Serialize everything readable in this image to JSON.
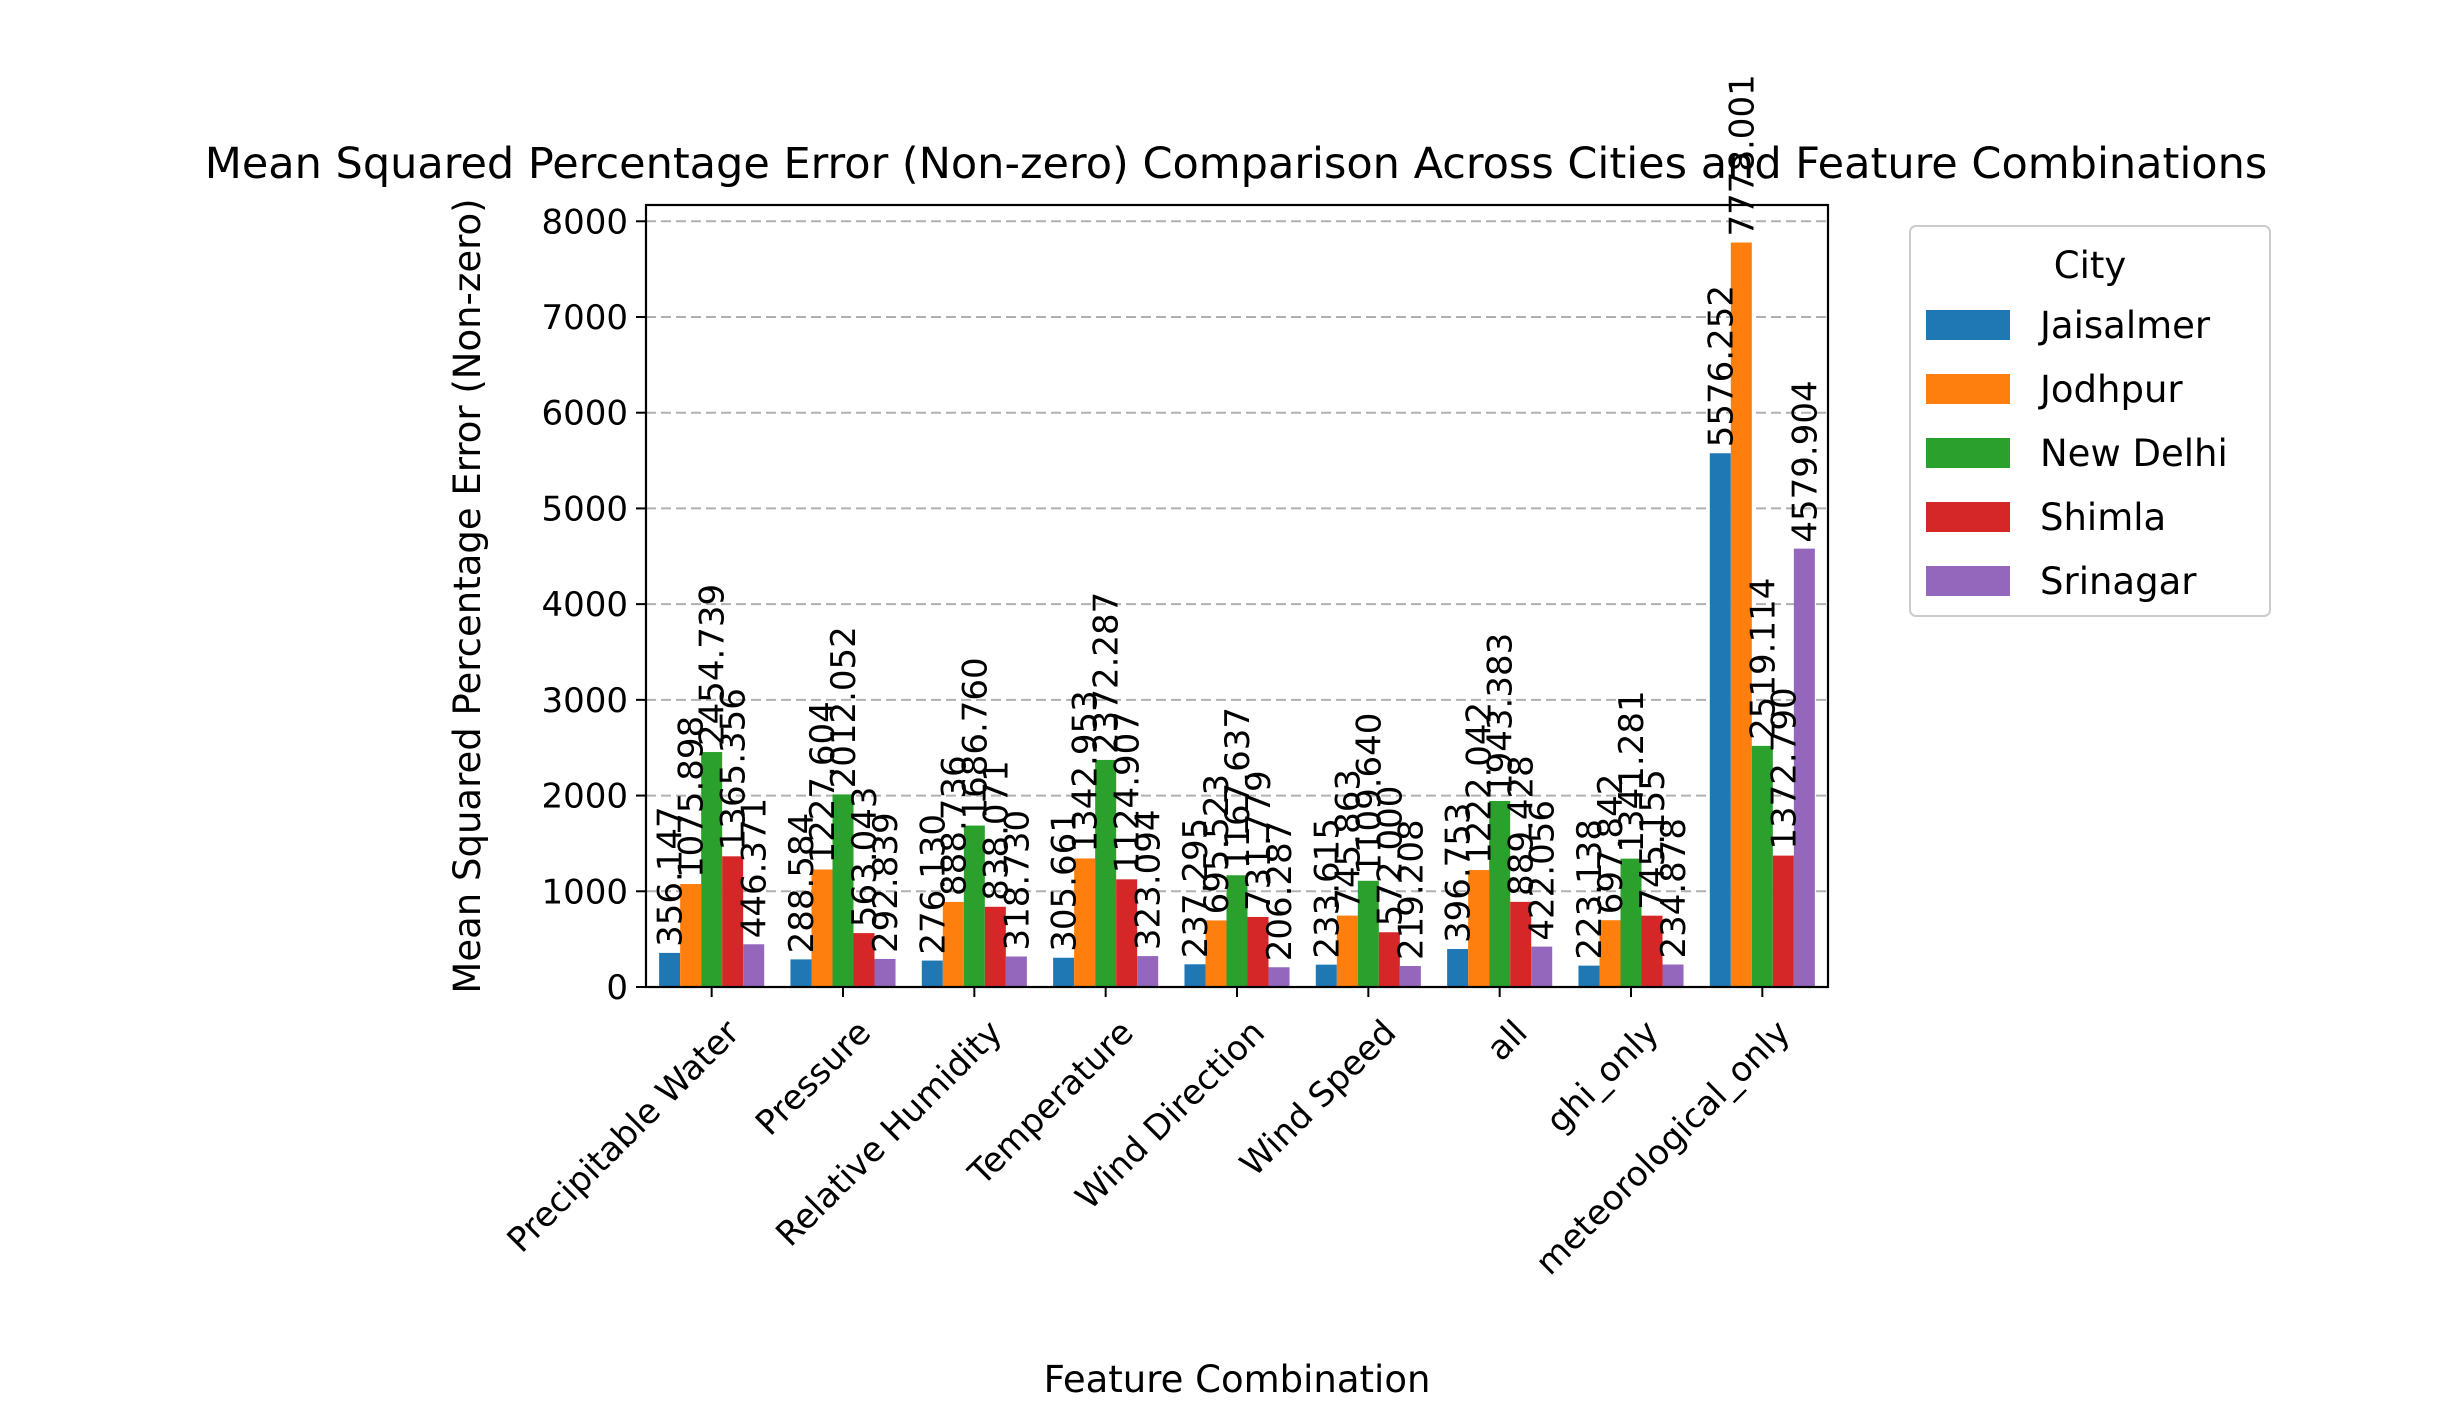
{
  "chart_data": {
    "type": "bar",
    "title": "Mean Squared Percentage Error (Non-zero) Comparison Across Cities and Feature Combinations",
    "xlabel": "Feature Combination",
    "ylabel": "Mean Squared Percentage Error (Non-zero)",
    "ylim": [
      0,
      8170
    ],
    "yticks": [
      0,
      1000,
      2000,
      3000,
      4000,
      5000,
      6000,
      7000,
      8000
    ],
    "grid": "y-dashed",
    "legend_position": "outside-right",
    "legend_title": "City",
    "categories": [
      "Precipitable Water",
      "Pressure",
      "Relative Humidity",
      "Temperature",
      "Wind Direction",
      "Wind Speed",
      "all",
      "ghi_only",
      "meteorological_only"
    ],
    "series": [
      {
        "name": "Jaisalmer",
        "color": "#1f77b4",
        "values": [
          356.147,
          288.584,
          276.13,
          305.661,
          237.295,
          233.615,
          396.753,
          223.138,
          5576.252
        ]
      },
      {
        "name": "Jodhpur",
        "color": "#ff7f0e",
        "values": [
          1075.898,
          1227.604,
          888.736,
          1342.953,
          695.523,
          745.863,
          1222.042,
          697.842,
          7778.001
        ]
      },
      {
        "name": "New Delhi",
        "color": "#2ca02c",
        "values": [
          2454.739,
          2012.052,
          1686.76,
          2372.287,
          1167.637,
          1109.64,
          1943.383,
          1341.281,
          2519.114
        ]
      },
      {
        "name": "Shimla",
        "color": "#d62728",
        "values": [
          1365.356,
          563.043,
          838.071,
          1124.907,
          731.779,
          572.0,
          889.428,
          745.155,
          1372.79
        ]
      },
      {
        "name": "Srinagar",
        "color": "#9467bd",
        "values": [
          446.371,
          292.839,
          318.73,
          323.094,
          206.287,
          219.208,
          422.056,
          234.878,
          4579.904
        ]
      }
    ],
    "value_labels": [
      [
        "356.147",
        "288.584",
        "276.130",
        "305.661",
        "237.295",
        "233.615",
        "396.753",
        "223.138",
        "5576.252"
      ],
      [
        "1075.898",
        "1227.604",
        "888.736",
        "1342.953",
        "695.523",
        "745.863",
        "1222.042",
        "697.842",
        "7778.001"
      ],
      [
        "2454.739",
        "2012.052",
        "1686.760",
        "2372.287",
        "1167.637",
        "1109.640",
        "1943.383",
        "1341.281",
        "2519.114"
      ],
      [
        "1365.356",
        "563.043",
        "838.071",
        "1124.907",
        "731.779",
        "572.000",
        "889.428",
        "745.155",
        "1372.790"
      ],
      [
        "446.371",
        "292.839",
        "318.730",
        "323.094",
        "206.287",
        "219.208",
        "422.056",
        "234.878",
        "4579.904"
      ]
    ]
  }
}
